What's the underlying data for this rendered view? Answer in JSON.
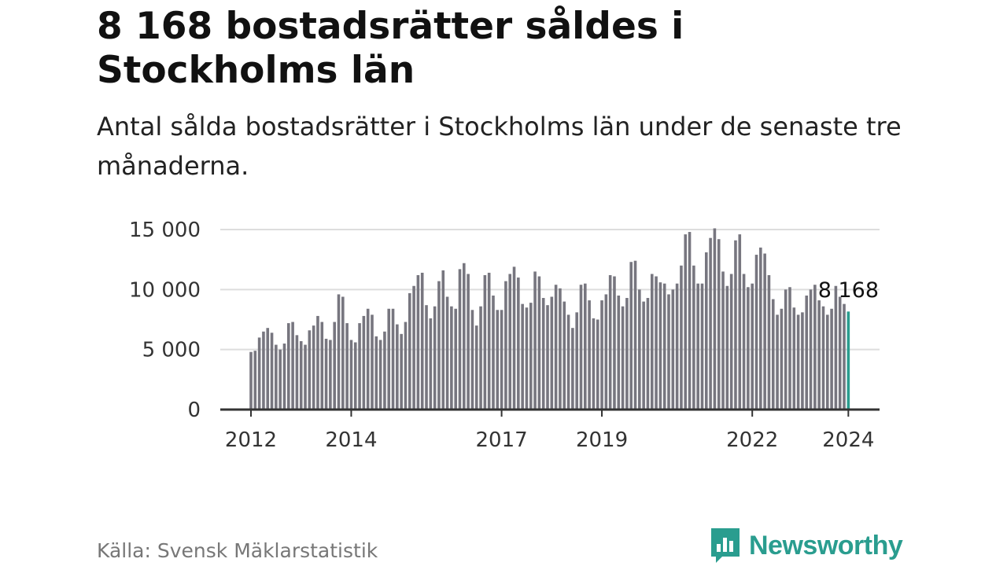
{
  "title": "8 168 bostadsrätter såldes i Stockholms län",
  "subtitle": "Antal sålda bostadsrätter i Stockholms län under de senaste tre månaderna.",
  "source": "Källa: Svensk Mäklarstatistik",
  "brand": "Newsworthy",
  "colors": {
    "bar": "#77767f",
    "highlight": "#2a9d8f",
    "grid": "#dddddd",
    "axis": "#333333"
  },
  "chart_data": {
    "type": "bar",
    "title": "8 168 bostadsrätter såldes i Stockholms län",
    "xlabel": "",
    "ylabel": "",
    "ylim": [
      0,
      15000
    ],
    "yticks": [
      0,
      5000,
      10000,
      15000
    ],
    "ytick_labels": [
      "0",
      "5 000",
      "10 000",
      "15 000"
    ],
    "xtick_labels": [
      "2012",
      "2014",
      "2017",
      "2019",
      "2022",
      "2024"
    ],
    "grid": true,
    "legend": "none",
    "annotation": {
      "label": "8 168",
      "value": 8168
    },
    "series": [
      {
        "name": "Antal sålda bostadsrätter",
        "values": [
          4800,
          4900,
          6000,
          6500,
          6800,
          6400,
          5400,
          5000,
          5500,
          7200,
          7300,
          6200,
          5700,
          5400,
          6600,
          7000,
          7800,
          7300,
          5900,
          5800,
          7300,
          9600,
          9400,
          7200,
          5800,
          5600,
          7200,
          7800,
          8400,
          7900,
          6100,
          5800,
          6500,
          8400,
          8400,
          7100,
          6300,
          7300,
          9700,
          10300,
          11200,
          11400,
          8700,
          7600,
          8600,
          10700,
          11600,
          9400,
          8600,
          8400,
          11700,
          12200,
          11300,
          8300,
          7000,
          8600,
          11200,
          11400,
          9500,
          8300,
          8300,
          10700,
          11300,
          11900,
          11000,
          8800,
          8500,
          8900,
          11500,
          11100,
          9300,
          8700,
          9400,
          10400,
          10100,
          9000,
          7900,
          6800,
          8100,
          10400,
          10500,
          9100,
          7600,
          7500,
          9100,
          9600,
          11200,
          11100,
          9500,
          8600,
          9300,
          12300,
          12400,
          10000,
          9000,
          9300,
          11300,
          11100,
          10600,
          10500,
          9600,
          10000,
          10500,
          12000,
          14600,
          14800,
          12000,
          10500,
          10500,
          13100,
          14300,
          15100,
          14200,
          11500,
          10300,
          11300,
          14100,
          14600,
          11300,
          10200,
          10500,
          12900,
          13500,
          13000,
          11200,
          9200,
          7900,
          8400,
          10000,
          10200,
          8500,
          7900,
          8100,
          9500,
          10000,
          10400,
          9100,
          8600,
          7900,
          8400,
          10300,
          9400,
          8800,
          8168
        ]
      }
    ]
  }
}
